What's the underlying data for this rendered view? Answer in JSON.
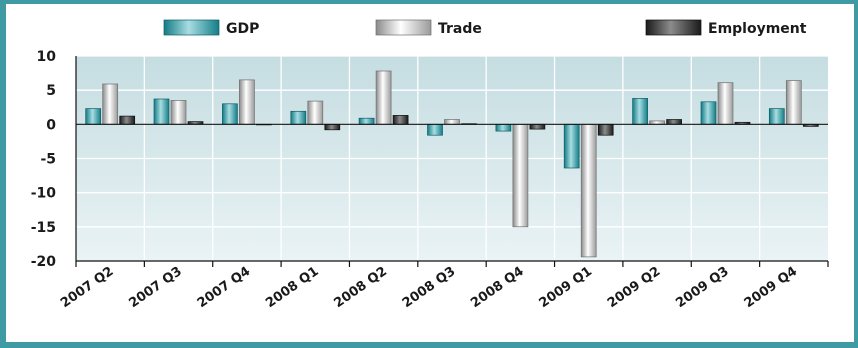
{
  "chart_data": {
    "type": "bar",
    "title": "",
    "xlabel": "",
    "ylabel": "",
    "categories": [
      "2007 Q2",
      "2007 Q3",
      "2007 Q4",
      "2008 Q1",
      "2008 Q2",
      "2008 Q3",
      "2008 Q4",
      "2009 Q1",
      "2009 Q2",
      "2009 Q3",
      "2009 Q4"
    ],
    "series": [
      {
        "name": "GDP",
        "color": "#3aa3ad",
        "values": [
          2.3,
          3.7,
          3.0,
          1.9,
          0.9,
          -1.6,
          -1.0,
          -6.4,
          3.8,
          3.3,
          2.3
        ]
      },
      {
        "name": "Trade",
        "color": "#f2f2f2",
        "values": [
          5.9,
          3.5,
          6.5,
          3.4,
          7.8,
          0.7,
          -15.0,
          -19.4,
          0.5,
          6.1,
          6.4
        ]
      },
      {
        "name": "Employment",
        "color": "#4a4a4a",
        "values": [
          1.2,
          0.4,
          0.0,
          -0.8,
          1.3,
          0.1,
          -0.7,
          -1.6,
          0.7,
          0.3,
          -0.3
        ]
      }
    ],
    "ylim": [
      -20,
      10
    ],
    "yticks": [
      10,
      5,
      0,
      -5,
      -10,
      -15,
      -20
    ],
    "grid": true,
    "legend": "top"
  }
}
